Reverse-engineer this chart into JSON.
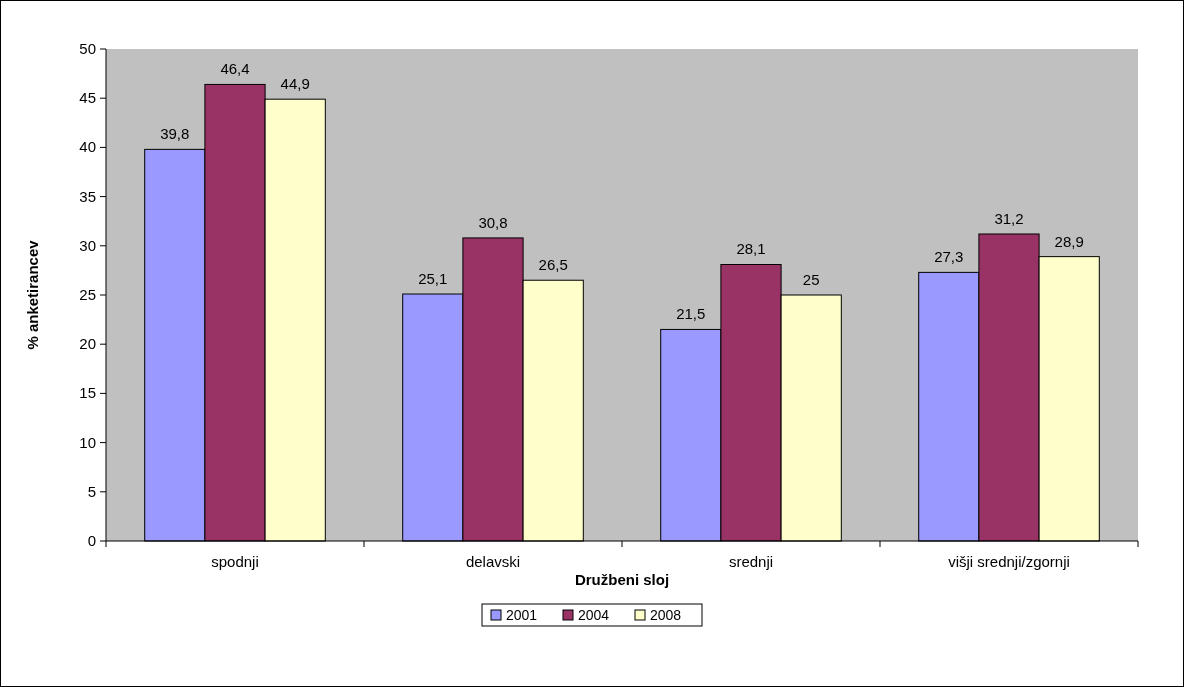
{
  "chart_data": {
    "type": "bar",
    "xlabel": "Družbeni sloj",
    "ylabel": "% anketirancev",
    "categories": [
      "spodnji",
      "delavski",
      "srednji",
      "višji srednji/zgornji"
    ],
    "series": [
      {
        "name": "2001",
        "color": "#9999ff",
        "values": [
          39.8,
          25.1,
          21.5,
          27.3
        ],
        "value_labels": [
          "39,8",
          "25,1",
          "21,5",
          "27,3"
        ]
      },
      {
        "name": "2004",
        "color": "#993366",
        "values": [
          46.4,
          30.8,
          28.1,
          31.2
        ],
        "value_labels": [
          "46,4",
          "30,8",
          "28,1",
          "31,2"
        ]
      },
      {
        "name": "2008",
        "color": "#ffffcc",
        "values": [
          44.9,
          26.5,
          25,
          28.9
        ],
        "value_labels": [
          "44,9",
          "26,5",
          "25",
          "28,9"
        ]
      }
    ],
    "ylim": [
      0,
      50
    ],
    "yticks": [
      0,
      5,
      10,
      15,
      20,
      25,
      30,
      35,
      40,
      45,
      50
    ],
    "legend": "bottom",
    "grid": false
  }
}
